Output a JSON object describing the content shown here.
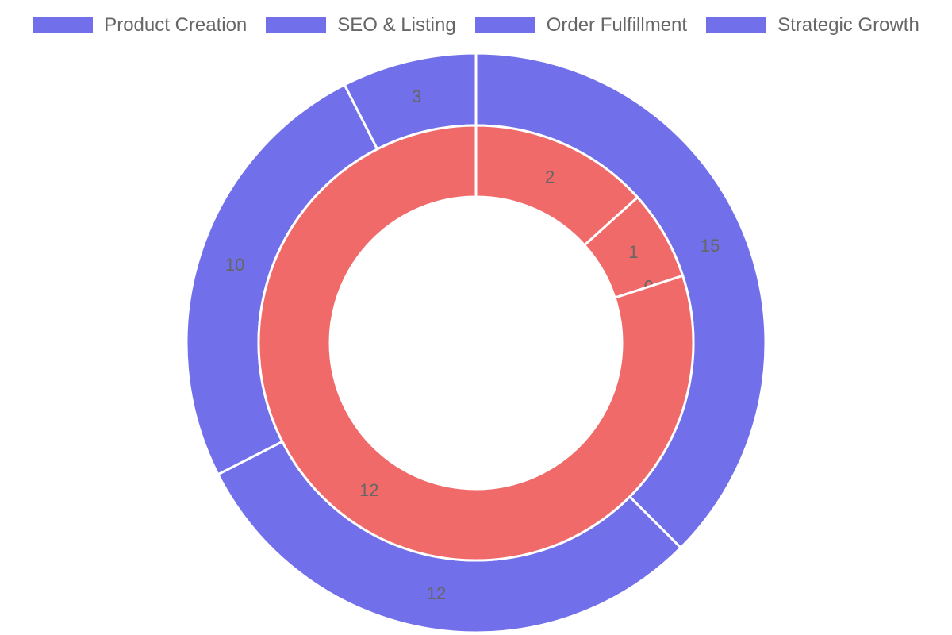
{
  "chart_data": {
    "type": "doughnut",
    "legend": {
      "position": "top",
      "entries": [
        "Product Creation",
        "SEO & Listing",
        "Order Fulfillment",
        "Strategic Growth"
      ]
    },
    "rings": [
      {
        "ring": "outer",
        "color": "#7170EA",
        "values": [
          15,
          12,
          10,
          3
        ]
      },
      {
        "ring": "inner",
        "color": "#F16A6A",
        "values": [
          2,
          1,
          0,
          12
        ]
      }
    ]
  }
}
